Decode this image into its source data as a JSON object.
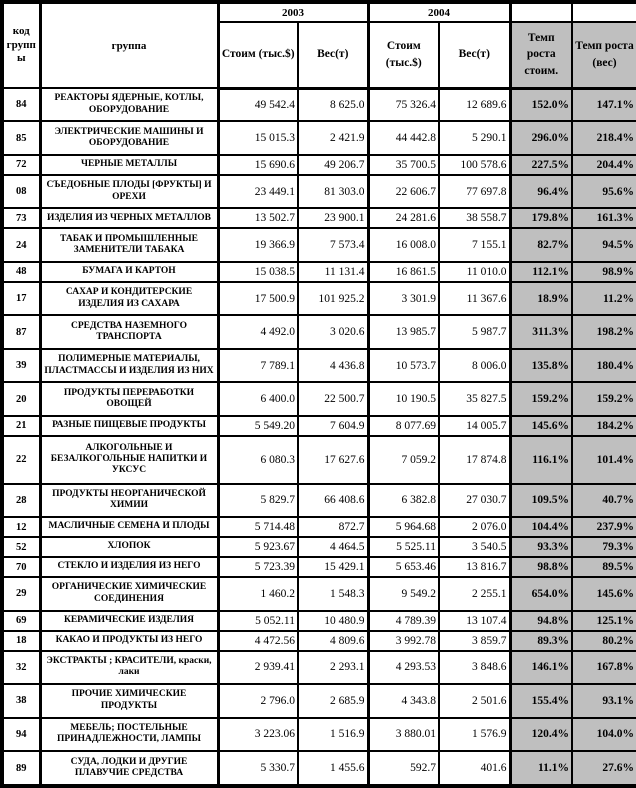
{
  "table": {
    "header": {
      "code": "код группы",
      "group": "группа",
      "year_2003": "2003",
      "year_2004": "2004",
      "cost": "Стоим (тыс.$)",
      "weight": "Вес(т)",
      "growth_cost": "Темп роста стоим.",
      "growth_weight": "Темп роста (вес)"
    },
    "rows": [
      {
        "code": "84",
        "name": "РЕАКТОРЫ ЯДЕРНЫЕ, КОТЛЫ, ОБОРУДОВАНИЕ",
        "cost_2003": "49 542.4",
        "weight_2003": "8 625.0",
        "cost_2004": "75 326.4",
        "weight_2004": "12 689.6",
        "growth_cost": "152.0%",
        "growth_weight": "147.1%"
      },
      {
        "code": "85",
        "name": "ЭЛЕКТРИЧЕСКИЕ МАШИНЫ И ОБОРУДОВАНИЕ",
        "cost_2003": "15 015.3",
        "weight_2003": "2 421.9",
        "cost_2004": "44 442.8",
        "weight_2004": "5 290.1",
        "growth_cost": "296.0%",
        "growth_weight": "218.4%"
      },
      {
        "code": "72",
        "name": "ЧЕРНЫЕ МЕТАЛЛЫ",
        "cost_2003": "15 690.6",
        "weight_2003": "49 206.7",
        "cost_2004": "35 700.5",
        "weight_2004": "100 578.6",
        "growth_cost": "227.5%",
        "growth_weight": "204.4%"
      },
      {
        "code": "08",
        "name": "СЪЕДОБНЫЕ ПЛОДЫ [ФРУКТЫ] И ОРЕХИ",
        "cost_2003": "23 449.1",
        "weight_2003": "81 303.0",
        "cost_2004": "22 606.7",
        "weight_2004": "77 697.8",
        "growth_cost": "96.4%",
        "growth_weight": "95.6%"
      },
      {
        "code": "73",
        "name": "ИЗДЕЛИЯ ИЗ ЧЕРНЫХ МЕТАЛЛОВ",
        "cost_2003": "13 502.7",
        "weight_2003": "23 900.1",
        "cost_2004": "24 281.6",
        "weight_2004": "38 558.7",
        "growth_cost": "179.8%",
        "growth_weight": "161.3%"
      },
      {
        "code": "24",
        "name": "ТАБАК И ПРОМЫШЛЕННЫЕ ЗАМЕНИТЕЛИ ТАБАКА",
        "cost_2003": "19 366.9",
        "weight_2003": "7 573.4",
        "cost_2004": "16 008.0",
        "weight_2004": "7 155.1",
        "growth_cost": "82.7%",
        "growth_weight": "94.5%"
      },
      {
        "code": "48",
        "name": "БУМАГА И КАРТОН",
        "cost_2003": "15 038.5",
        "weight_2003": "11 131.4",
        "cost_2004": "16 861.5",
        "weight_2004": "11 010.0",
        "growth_cost": "112.1%",
        "growth_weight": "98.9%"
      },
      {
        "code": "17",
        "name": "САХАР И КОНДИТЕРСКИЕ ИЗДЕЛИЯ ИЗ САХАРА",
        "cost_2003": "17 500.9",
        "weight_2003": "101 925.2",
        "cost_2004": "3 301.9",
        "weight_2004": "11 367.6",
        "growth_cost": "18.9%",
        "growth_weight": "11.2%"
      },
      {
        "code": "87",
        "name": "СРЕДСТВА НАЗЕМНОГО ТРАНСПОРТА",
        "cost_2003": "4 492.0",
        "weight_2003": "3 020.6",
        "cost_2004": "13 985.7",
        "weight_2004": "5 987.7",
        "growth_cost": "311.3%",
        "growth_weight": "198.2%"
      },
      {
        "code": "39",
        "name": "ПОЛИМЕРНЫЕ МАТЕРИАЛЫ, ПЛАСТМАССЫ И ИЗДЕЛИЯ ИЗ НИХ",
        "cost_2003": "7 789.1",
        "weight_2003": "4 436.8",
        "cost_2004": "10 573.7",
        "weight_2004": "8 006.0",
        "growth_cost": "135.8%",
        "growth_weight": "180.4%"
      },
      {
        "code": "20",
        "name": "ПРОДУКТЫ ПЕРЕРАБОТКИ ОВОЩЕЙ",
        "cost_2003": "6 400.0",
        "weight_2003": "22 500.7",
        "cost_2004": "10 190.5",
        "weight_2004": "35 827.5",
        "growth_cost": "159.2%",
        "growth_weight": "159.2%"
      },
      {
        "code": "21",
        "name": "РАЗНЫЕ ПИЩЕВЫЕ ПРОДУКТЫ",
        "cost_2003": "5 549.20",
        "weight_2003": "7 604.9",
        "cost_2004": "8 077.69",
        "weight_2004": "14 005.7",
        "growth_cost": "145.6%",
        "growth_weight": "184.2%"
      },
      {
        "code": "22",
        "name": "АЛКОГОЛЬНЫЕ И БЕЗАЛКОГОЛЬНЫЕ НАПИТКИ И УКСУС",
        "cost_2003": "6 080.3",
        "weight_2003": "17 627.6",
        "cost_2004": "7 059.2",
        "weight_2004": "17 874.8",
        "growth_cost": "116.1%",
        "growth_weight": "101.4%"
      },
      {
        "code": "28",
        "name": "ПРОДУКТЫ НЕОРГАНИЧЕСКОЙ ХИМИИ",
        "cost_2003": "5 829.7",
        "weight_2003": "66 408.6",
        "cost_2004": "6 382.8",
        "weight_2004": "27 030.7",
        "growth_cost": "109.5%",
        "growth_weight": "40.7%"
      },
      {
        "code": "12",
        "name": "МАСЛИЧНЫЕ СЕМЕНА И ПЛОДЫ",
        "cost_2003": "5 714.48",
        "weight_2003": "872.7",
        "cost_2004": "5 964.68",
        "weight_2004": "2 076.0",
        "growth_cost": "104.4%",
        "growth_weight": "237.9%"
      },
      {
        "code": "52",
        "name": "ХЛОПОК",
        "cost_2003": "5 923.67",
        "weight_2003": "4 464.5",
        "cost_2004": "5 525.11",
        "weight_2004": "3 540.5",
        "growth_cost": "93.3%",
        "growth_weight": "79.3%"
      },
      {
        "code": "70",
        "name": "СТЕКЛО И ИЗДЕЛИЯ ИЗ НЕГО",
        "cost_2003": "5 723.39",
        "weight_2003": "15 429.1",
        "cost_2004": "5 653.46",
        "weight_2004": "13 816.7",
        "growth_cost": "98.8%",
        "growth_weight": "89.5%"
      },
      {
        "code": "29",
        "name": "ОРГАНИЧЕСКИЕ ХИМИЧЕСКИЕ СОЕДИНЕНИЯ",
        "cost_2003": "1 460.2",
        "weight_2003": "1 548.3",
        "cost_2004": "9 549.2",
        "weight_2004": "2 255.1",
        "growth_cost": "654.0%",
        "growth_weight": "145.6%"
      },
      {
        "code": "69",
        "name": "КЕРАМИЧЕСКИЕ ИЗДЕЛИЯ",
        "cost_2003": "5 052.11",
        "weight_2003": "10 480.9",
        "cost_2004": "4 789.39",
        "weight_2004": "13 107.4",
        "growth_cost": "94.8%",
        "growth_weight": "125.1%"
      },
      {
        "code": "18",
        "name": "КАКАО И ПРОДУКТЫ ИЗ НЕГО",
        "cost_2003": "4 472.56",
        "weight_2003": "4 809.6",
        "cost_2004": "3 992.78",
        "weight_2004": "3 859.7",
        "growth_cost": "89.3%",
        "growth_weight": "80.2%"
      },
      {
        "code": "32",
        "name": "ЭКСТРАКТЫ ; КРАСИТЕЛИ, краски, лаки",
        "cost_2003": "2 939.41",
        "weight_2003": "2 293.1",
        "cost_2004": "4 293.53",
        "weight_2004": "3 848.6",
        "growth_cost": "146.1%",
        "growth_weight": "167.8%"
      },
      {
        "code": "38",
        "name": "ПРОЧИЕ ХИМИЧЕСКИЕ ПРОДУКТЫ",
        "cost_2003": "2 796.0",
        "weight_2003": "2 685.9",
        "cost_2004": "4 343.8",
        "weight_2004": "2 501.6",
        "growth_cost": "155.4%",
        "growth_weight": "93.1%"
      },
      {
        "code": "94",
        "name": "МЕБЕЛЬ; ПОСТЕЛЬНЫЕ ПРИНАДЛЕЖНОСТИ, ЛАМПЫ",
        "cost_2003": "3 223.06",
        "weight_2003": "1 516.9",
        "cost_2004": "3 880.01",
        "weight_2004": "1 576.9",
        "growth_cost": "120.4%",
        "growth_weight": "104.0%"
      },
      {
        "code": "89",
        "name": "СУДА, ЛОДКИ И ДРУГИЕ ПЛАВУЧИЕ СРЕДСТВА",
        "cost_2003": "5 330.7",
        "weight_2003": "1 455.6",
        "cost_2004": "592.7",
        "weight_2004": "401.6",
        "growth_cost": "11.1%",
        "growth_weight": "27.6%"
      }
    ]
  },
  "colors": {
    "growth_column_bg": "#bfbfbf",
    "border": "#000000",
    "background": "#ffffff"
  }
}
